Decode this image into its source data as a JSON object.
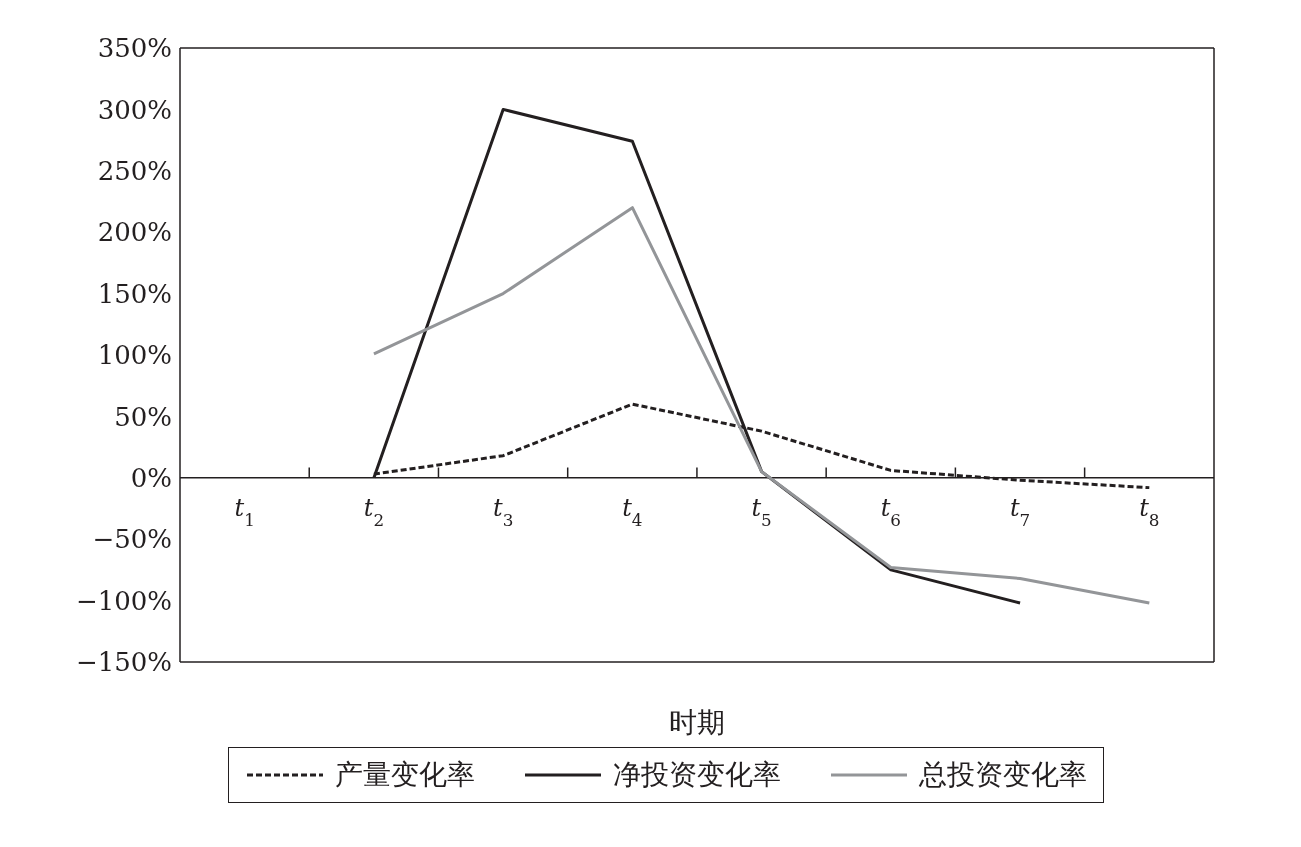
{
  "chart_data": {
    "type": "line",
    "xlabel": "时期",
    "categories": [
      "t$_{1}$",
      "t$_{2}$",
      "t$_{3}$",
      "t$_{4}$",
      "t$_{5}$",
      "t$_{6}$",
      "t$_{7}$",
      "t$_{8}$"
    ],
    "series": [
      {
        "name": "产量变化率",
        "color": "#231f20",
        "line_style": "dashed",
        "values": [
          null,
          3,
          18,
          60,
          38,
          6,
          -2,
          -8
        ]
      },
      {
        "name": "净投资变化率",
        "color": "#231f20",
        "line_style": "solid",
        "values": [
          null,
          0,
          300,
          274,
          5,
          -75,
          -102,
          null
        ]
      },
      {
        "name": "总投资变化率",
        "color": "#939598",
        "line_style": "solid",
        "values": [
          null,
          101,
          150,
          220,
          5,
          -73,
          -82,
          -102
        ]
      }
    ],
    "ylim": [
      -150,
      350
    ],
    "yticks": [
      {
        "value": -150,
        "label": "−150%"
      },
      {
        "value": -100,
        "label": "−100%"
      },
      {
        "value": -50,
        "label": "−50%"
      },
      {
        "value": 0,
        "label": "0%"
      },
      {
        "value": 50,
        "label": "50%"
      },
      {
        "value": 100,
        "label": "100%"
      },
      {
        "value": 150,
        "label": "150%"
      },
      {
        "value": 200,
        "label": "200%"
      },
      {
        "value": 250,
        "label": "250%"
      },
      {
        "value": 300,
        "label": "300%"
      },
      {
        "value": 350,
        "label": "350%"
      }
    ],
    "marker": "none",
    "grid": false,
    "legend": "bottom"
  }
}
